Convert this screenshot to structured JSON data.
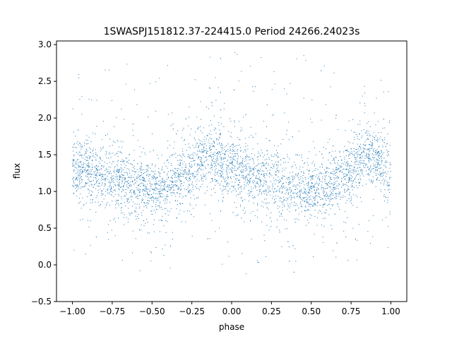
{
  "chart_data": {
    "type": "scatter",
    "title": "1SWASPJ151812.37-224415.0 Period 24266.24023s",
    "xlabel": "phase",
    "ylabel": "flux",
    "xlim": [
      -1.1,
      1.1
    ],
    "ylim": [
      -0.5,
      3.05
    ],
    "xticks": [
      -1.0,
      -0.75,
      -0.5,
      -0.25,
      0.0,
      0.25,
      0.5,
      0.75,
      1.0
    ],
    "xtick_labels": [
      "−1.00",
      "−0.75",
      "−0.50",
      "−0.25",
      "0.00",
      "0.25",
      "0.50",
      "0.75",
      "1.00"
    ],
    "yticks": [
      -0.5,
      0.0,
      0.5,
      1.0,
      1.5,
      2.0,
      2.5,
      3.0
    ],
    "ytick_labels": [
      "−0.5",
      "0.0",
      "0.5",
      "1.0",
      "1.5",
      "2.0",
      "2.5",
      "3.0"
    ],
    "grid": false,
    "legend": false,
    "color": "#1f77b4",
    "series": [
      {
        "x_range": [
          -1.0,
          1.0
        ],
        "profile_phase": [
          -1.0,
          -0.9,
          -0.75,
          -0.6,
          -0.45,
          -0.3,
          -0.15,
          0.0,
          0.1,
          0.25,
          0.4,
          0.55,
          0.7,
          0.85,
          1.0
        ],
        "profile_flux": [
          1.25,
          1.3,
          1.18,
          1.05,
          1.0,
          1.2,
          1.5,
          1.35,
          1.25,
          1.15,
          1.05,
          1.0,
          1.2,
          1.5,
          1.25
        ],
        "flux_spread_core": 0.2,
        "outlier_range": [
          0.0,
          2.9
        ]
      }
    ]
  }
}
